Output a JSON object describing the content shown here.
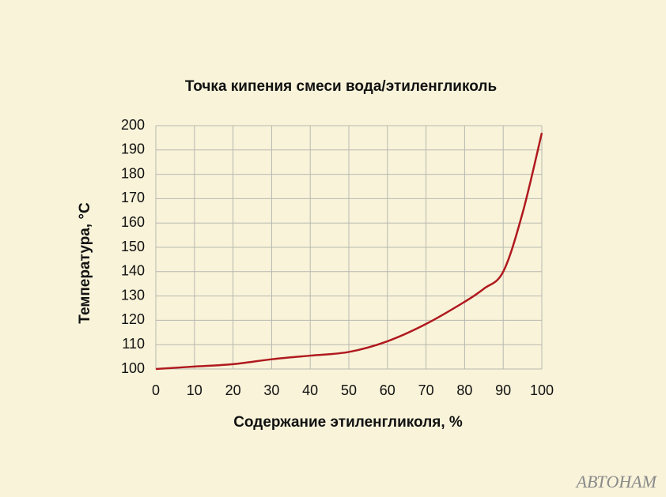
{
  "chart_data": {
    "type": "line",
    "title": "Точка кипения смеси вода/этиленгликоль",
    "x_label": "Содержание этиленгликоля, %",
    "y_label": "Температура, °С",
    "watermark": "АВТОНАМ",
    "x": [
      0,
      10,
      20,
      30,
      40,
      50,
      60,
      70,
      80,
      85,
      90,
      95,
      100
    ],
    "series": [
      {
        "color": "#b0191e",
        "values": [
          100,
          101,
          102,
          104,
          105.5,
          107,
          111.4,
          118.5,
          127.6,
          133,
          140,
          164,
          197
        ]
      }
    ],
    "xlim": [
      0,
      100
    ],
    "xticks": [
      0,
      10,
      20,
      30,
      40,
      50,
      60,
      70,
      80,
      90,
      100
    ],
    "ylim": [
      100,
      200
    ],
    "yticks": [
      100,
      110,
      120,
      130,
      140,
      150,
      160,
      170,
      180,
      190,
      200
    ],
    "grid": true
  }
}
